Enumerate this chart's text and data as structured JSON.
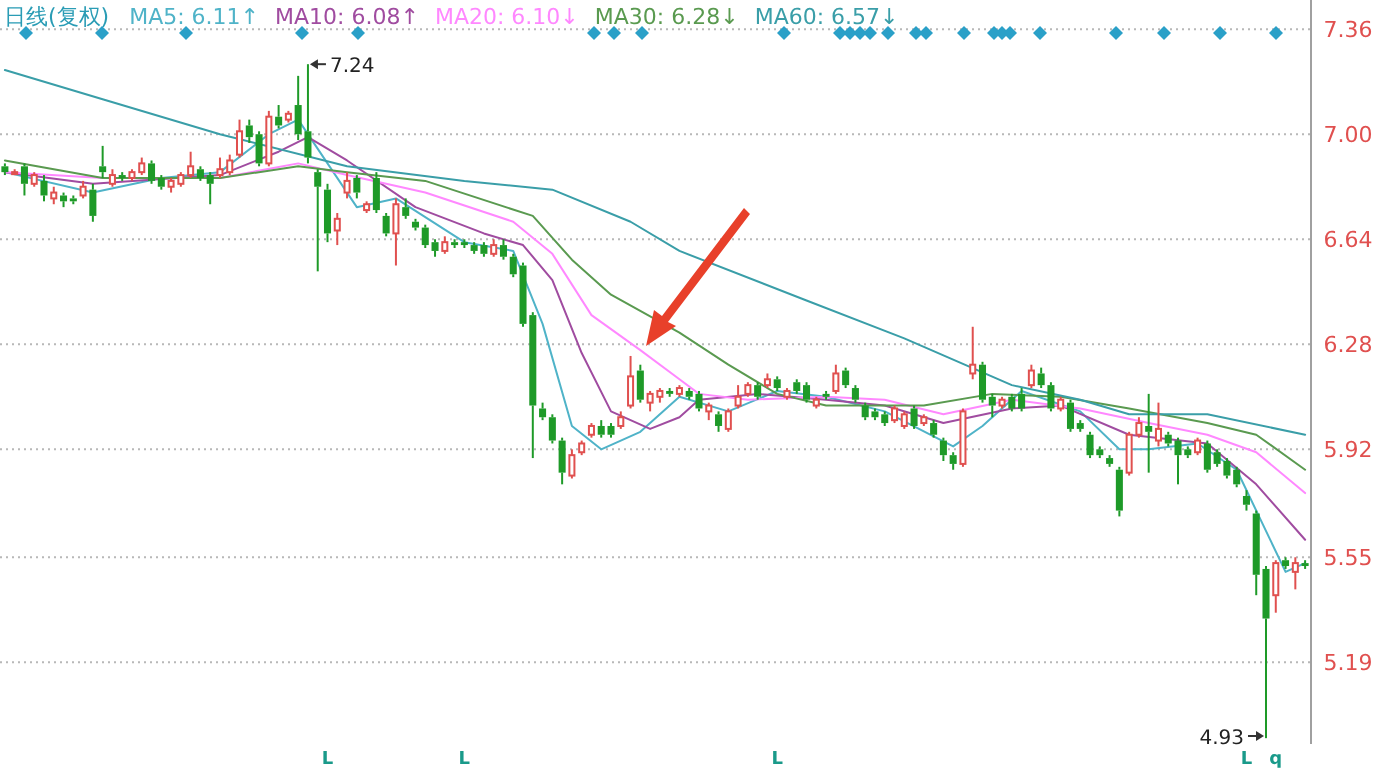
{
  "chart_data": {
    "type": "candlestick",
    "title": "日线(复权)",
    "legend": "top left",
    "grid": "y",
    "tick_labels": "y",
    "categories": [
      null,
      null,
      null,
      null,
      null,
      null,
      null,
      null,
      null,
      null,
      null,
      null,
      null,
      null,
      null,
      null,
      null,
      null,
      null,
      null,
      null,
      null,
      null,
      null,
      null,
      null,
      null,
      null,
      null,
      null,
      null,
      null,
      null,
      null,
      null,
      null,
      null,
      null,
      null,
      null,
      null,
      null,
      null,
      null,
      null,
      null,
      null,
      null,
      null,
      null,
      null,
      null,
      null,
      null,
      null,
      null,
      null,
      null,
      null,
      null,
      null,
      null,
      null,
      null,
      null,
      null,
      null,
      null,
      null,
      null,
      null,
      null,
      null,
      null,
      null,
      null,
      null,
      null,
      null,
      null,
      null,
      null,
      null,
      null,
      null,
      null,
      null,
      null,
      null,
      null,
      null,
      null,
      null,
      null,
      null,
      null,
      null,
      null,
      null,
      null,
      null,
      null,
      null,
      null,
      null,
      null,
      null,
      null,
      null,
      null,
      null,
      null,
      null,
      null,
      null,
      null,
      null,
      null,
      null,
      null,
      null,
      null,
      null,
      null,
      null,
      null,
      null,
      null,
      null,
      null,
      null,
      null,
      null,
      null
    ],
    "ohlc": [
      [
        6.89,
        6.9,
        6.86,
        6.87
      ],
      [
        6.87,
        6.88,
        6.86,
        6.87
      ],
      [
        6.89,
        6.9,
        6.79,
        6.83
      ],
      [
        6.83,
        6.87,
        6.82,
        6.86
      ],
      [
        6.84,
        6.86,
        6.77,
        6.79
      ],
      [
        6.78,
        6.82,
        6.76,
        6.8
      ],
      [
        6.79,
        6.8,
        6.75,
        6.77
      ],
      [
        6.78,
        6.79,
        6.76,
        6.77
      ],
      [
        6.79,
        6.84,
        6.78,
        6.82
      ],
      [
        6.81,
        6.83,
        6.7,
        6.72
      ],
      [
        6.89,
        6.96,
        6.85,
        6.87
      ],
      [
        6.83,
        6.88,
        6.82,
        6.86
      ],
      [
        6.86,
        6.87,
        6.84,
        6.85
      ],
      [
        6.85,
        6.88,
        6.84,
        6.87
      ],
      [
        6.87,
        6.92,
        6.86,
        6.9
      ],
      [
        6.9,
        6.91,
        6.83,
        6.84
      ],
      [
        6.85,
        6.86,
        6.81,
        6.82
      ],
      [
        6.82,
        6.85,
        6.8,
        6.84
      ],
      [
        6.83,
        6.87,
        6.82,
        6.86
      ],
      [
        6.86,
        6.94,
        6.85,
        6.89
      ],
      [
        6.88,
        6.89,
        6.84,
        6.85
      ],
      [
        6.86,
        6.87,
        6.76,
        6.83
      ],
      [
        6.86,
        6.92,
        6.85,
        6.88
      ],
      [
        6.87,
        6.93,
        6.86,
        6.91
      ],
      [
        6.93,
        7.05,
        6.92,
        7.01
      ],
      [
        7.03,
        7.05,
        6.97,
        6.99
      ],
      [
        7.0,
        7.01,
        6.89,
        6.9
      ],
      [
        6.9,
        7.08,
        6.89,
        7.06
      ],
      [
        7.06,
        7.1,
        7.02,
        7.03
      ],
      [
        7.05,
        7.08,
        7.04,
        7.07
      ],
      [
        7.1,
        7.2,
        6.98,
        7.0
      ],
      [
        7.01,
        7.24,
        6.9,
        6.92
      ],
      [
        6.87,
        6.88,
        6.53,
        6.82
      ],
      [
        6.81,
        6.83,
        6.63,
        6.66
      ],
      [
        6.67,
        6.73,
        6.62,
        6.71
      ],
      [
        6.8,
        6.87,
        6.78,
        6.84
      ],
      [
        6.85,
        6.86,
        6.78,
        6.8
      ],
      [
        6.74,
        6.77,
        6.73,
        6.76
      ],
      [
        6.85,
        6.87,
        6.73,
        6.74
      ],
      [
        6.72,
        6.73,
        6.65,
        6.66
      ],
      [
        6.66,
        6.78,
        6.55,
        6.76
      ],
      [
        6.75,
        6.78,
        6.71,
        6.72
      ],
      [
        6.7,
        6.71,
        6.67,
        6.68
      ],
      [
        6.68,
        6.69,
        6.61,
        6.62
      ],
      [
        6.63,
        6.64,
        6.58,
        6.6
      ],
      [
        6.6,
        6.65,
        6.59,
        6.63
      ],
      [
        6.63,
        6.64,
        6.61,
        6.62
      ],
      [
        6.63,
        6.64,
        6.61,
        6.62
      ],
      [
        6.62,
        6.63,
        6.59,
        6.6
      ],
      [
        6.62,
        6.63,
        6.58,
        6.59
      ],
      [
        6.59,
        6.64,
        6.58,
        6.62
      ],
      [
        6.62,
        6.64,
        6.57,
        6.58
      ],
      [
        6.58,
        6.59,
        6.51,
        6.52
      ],
      [
        6.55,
        6.56,
        6.34,
        6.35
      ],
      [
        6.38,
        6.39,
        5.89,
        6.07
      ],
      [
        6.06,
        6.08,
        6.02,
        6.03
      ],
      [
        6.03,
        6.04,
        5.94,
        5.95
      ],
      [
        5.95,
        5.96,
        5.8,
        5.84
      ],
      [
        5.83,
        5.92,
        5.82,
        5.9
      ],
      [
        5.91,
        5.95,
        5.9,
        5.94
      ],
      [
        5.97,
        6.01,
        5.96,
        6.0
      ],
      [
        6.0,
        6.02,
        5.96,
        5.97
      ],
      [
        6.0,
        6.01,
        5.96,
        5.97
      ],
      [
        6.0,
        6.05,
        5.99,
        6.03
      ],
      [
        6.07,
        6.24,
        6.06,
        6.17
      ],
      [
        6.19,
        6.21,
        6.08,
        6.09
      ],
      [
        6.08,
        6.12,
        6.05,
        6.11
      ],
      [
        6.1,
        6.13,
        6.08,
        6.12
      ],
      [
        6.12,
        6.13,
        6.1,
        6.11
      ],
      [
        6.11,
        6.14,
        6.1,
        6.13
      ],
      [
        6.12,
        6.13,
        6.09,
        6.1
      ],
      [
        6.11,
        6.12,
        6.05,
        6.06
      ],
      [
        6.05,
        6.08,
        6.02,
        6.07
      ],
      [
        6.04,
        6.05,
        5.98,
        6.0
      ],
      [
        5.99,
        6.06,
        5.98,
        6.05
      ],
      [
        6.07,
        6.14,
        6.06,
        6.1
      ],
      [
        6.11,
        6.15,
        6.1,
        6.14
      ],
      [
        6.14,
        6.15,
        6.09,
        6.1
      ],
      [
        6.14,
        6.18,
        6.13,
        6.16
      ],
      [
        6.16,
        6.17,
        6.12,
        6.13
      ],
      [
        6.1,
        6.13,
        6.09,
        6.12
      ],
      [
        6.15,
        6.16,
        6.11,
        6.12
      ],
      [
        6.14,
        6.15,
        6.08,
        6.09
      ],
      [
        6.07,
        6.1,
        6.06,
        6.09
      ],
      [
        6.11,
        6.12,
        6.09,
        6.1
      ],
      [
        6.12,
        6.21,
        6.11,
        6.18
      ],
      [
        6.19,
        6.2,
        6.13,
        6.14
      ],
      [
        6.13,
        6.14,
        6.08,
        6.09
      ],
      [
        6.07,
        6.08,
        6.02,
        6.03
      ],
      [
        6.05,
        6.06,
        6.02,
        6.03
      ],
      [
        6.04,
        6.05,
        6.0,
        6.01
      ],
      [
        6.02,
        6.07,
        6.01,
        6.06
      ],
      [
        6.0,
        6.05,
        5.99,
        6.04
      ],
      [
        6.06,
        6.07,
        5.99,
        6.0
      ],
      [
        6.01,
        6.04,
        6.0,
        6.03
      ],
      [
        6.01,
        6.02,
        5.96,
        5.97
      ],
      [
        5.95,
        5.96,
        5.88,
        5.9
      ],
      [
        5.9,
        5.91,
        5.85,
        5.87
      ],
      [
        5.87,
        6.06,
        5.86,
        6.05
      ],
      [
        6.18,
        6.34,
        6.16,
        6.21
      ],
      [
        6.21,
        6.22,
        6.08,
        6.09
      ],
      [
        6.1,
        6.11,
        6.03,
        6.07
      ],
      [
        6.07,
        6.1,
        6.06,
        6.09
      ],
      [
        6.1,
        6.11,
        6.05,
        6.06
      ],
      [
        6.11,
        6.13,
        6.05,
        6.06
      ],
      [
        6.14,
        6.21,
        6.13,
        6.19
      ],
      [
        6.18,
        6.2,
        6.13,
        6.14
      ],
      [
        6.14,
        6.15,
        6.05,
        6.06
      ],
      [
        6.06,
        6.1,
        6.05,
        6.09
      ],
      [
        6.08,
        6.09,
        5.98,
        5.99
      ],
      [
        6.01,
        6.02,
        5.98,
        5.99
      ],
      [
        5.97,
        5.98,
        5.89,
        5.9
      ],
      [
        5.92,
        5.93,
        5.89,
        5.9
      ],
      [
        5.89,
        5.9,
        5.86,
        5.87
      ],
      [
        5.85,
        5.86,
        5.69,
        5.71
      ],
      [
        5.84,
        5.98,
        5.83,
        5.97
      ],
      [
        5.97,
        6.03,
        5.96,
        6.01
      ],
      [
        6.0,
        6.11,
        5.84,
        5.98
      ],
      [
        5.95,
        6.08,
        5.93,
        5.99
      ],
      [
        5.97,
        5.98,
        5.93,
        5.94
      ],
      [
        5.95,
        5.96,
        5.8,
        5.9
      ],
      [
        5.92,
        5.93,
        5.89,
        5.9
      ],
      [
        5.91,
        5.96,
        5.9,
        5.95
      ],
      [
        5.94,
        5.95,
        5.84,
        5.85
      ],
      [
        5.91,
        5.92,
        5.86,
        5.87
      ],
      [
        5.88,
        5.89,
        5.82,
        5.83
      ],
      [
        5.85,
        5.86,
        5.79,
        5.8
      ],
      [
        5.76,
        5.78,
        5.71,
        5.73
      ],
      [
        5.7,
        5.71,
        5.42,
        5.49
      ],
      [
        5.51,
        5.52,
        4.93,
        5.34
      ],
      [
        5.42,
        5.54,
        5.36,
        5.53
      ],
      [
        5.54,
        5.55,
        5.51,
        5.52
      ],
      [
        5.5,
        5.55,
        5.44,
        5.53
      ],
      [
        5.53,
        5.54,
        5.51,
        5.52
      ]
    ],
    "series": [
      {
        "name": "MA5: 6.11↑",
        "type": "line",
        "color": "#4fb3c8",
        "values": [
          6.87,
          null,
          null,
          null,
          null,
          null,
          null,
          null,
          null,
          6.8,
          null,
          null,
          null,
          null,
          null,
          null,
          6.85,
          null,
          null,
          null,
          null,
          null,
          6.87,
          null,
          null,
          null,
          null,
          7.0,
          null,
          null,
          7.05,
          null,
          null,
          6.9,
          null,
          null,
          6.75,
          null,
          null,
          null,
          6.78,
          null,
          null,
          null,
          null,
          null,
          null,
          6.63,
          null,
          null,
          null,
          null,
          6.6,
          null,
          null,
          6.35,
          null,
          null,
          6.0,
          null,
          null,
          5.92,
          null,
          null,
          null,
          5.98,
          null,
          null,
          null,
          6.1,
          null,
          null,
          null,
          null,
          6.05,
          null,
          null,
          null,
          null,
          6.12,
          null,
          null,
          null,
          null,
          6.1,
          null,
          null,
          null,
          null,
          null,
          6.05,
          null,
          null,
          null,
          null,
          null,
          null,
          5.93,
          null,
          null,
          6.0,
          null,
          null,
          null,
          6.12,
          null,
          null,
          null,
          null,
          null,
          6.05,
          null,
          null,
          null,
          5.92,
          null,
          null,
          5.92,
          null,
          null,
          null,
          null,
          5.94,
          null,
          null,
          null,
          5.85,
          null,
          null,
          null,
          null,
          5.5,
          null,
          5.53
        ]
      },
      {
        "name": "MA10: 6.08↑",
        "type": "line",
        "color": "#a04ca0",
        "values": [
          6.87,
          null,
          null,
          null,
          null,
          null,
          null,
          null,
          null,
          6.83,
          null,
          null,
          null,
          null,
          null,
          null,
          null,
          null,
          null,
          null,
          null,
          null,
          6.86,
          null,
          null,
          null,
          null,
          null,
          6.94,
          null,
          null,
          6.99,
          null,
          null,
          null,
          6.91,
          null,
          null,
          null,
          null,
          null,
          null,
          6.75,
          null,
          null,
          null,
          null,
          null,
          null,
          6.66,
          null,
          null,
          null,
          6.62,
          null,
          null,
          6.5,
          null,
          null,
          6.25,
          null,
          null,
          6.05,
          null,
          null,
          null,
          5.99,
          null,
          null,
          6.03,
          null,
          6.09,
          null,
          null,
          null,
          null,
          null,
          6.11,
          null,
          null,
          null,
          null,
          null,
          null,
          6.09,
          null,
          null,
          null,
          null,
          null,
          6.07,
          null,
          null,
          null,
          null,
          null,
          6.01,
          null,
          null,
          null,
          null,
          null,
          null,
          6.06,
          null,
          null,
          null,
          null,
          6.07,
          null,
          null,
          null,
          null,
          null,
          null,
          5.97,
          null,
          null,
          null,
          null,
          null,
          null,
          null,
          5.94,
          null,
          null,
          null,
          null,
          5.8,
          null,
          null,
          null,
          null,
          5.61
        ]
      },
      {
        "name": "MA20: 6.10↓",
        "type": "line",
        "color": "#ff88ff",
        "values": [
          6.87,
          null,
          null,
          null,
          null,
          null,
          null,
          null,
          null,
          null,
          6.85,
          null,
          null,
          null,
          null,
          null,
          null,
          null,
          null,
          null,
          null,
          null,
          6.85,
          null,
          null,
          null,
          null,
          null,
          null,
          null,
          6.9,
          null,
          null,
          null,
          null,
          6.86,
          null,
          null,
          null,
          null,
          null,
          null,
          null,
          6.8,
          null,
          null,
          null,
          null,
          null,
          null,
          null,
          null,
          6.7,
          null,
          null,
          null,
          6.59,
          null,
          null,
          null,
          6.38,
          null,
          null,
          null,
          null,
          6.26,
          null,
          null,
          null,
          6.16,
          null,
          6.11,
          null,
          null,
          null,
          null,
          6.09,
          null,
          null,
          null,
          null,
          null,
          null,
          null,
          6.1,
          null,
          null,
          null,
          null,
          null,
          6.09,
          null,
          null,
          null,
          null,
          null,
          6.04,
          null,
          null,
          null,
          null,
          null,
          null,
          6.09,
          null,
          null,
          null,
          null,
          null,
          null,
          6.06,
          null,
          null,
          null,
          null,
          null,
          null,
          6.01,
          null,
          null,
          null,
          null,
          null,
          5.97,
          null,
          null,
          null,
          null,
          5.91,
          null,
          null,
          null,
          null,
          5.77
        ]
      },
      {
        "name": "MA30: 6.28↓",
        "type": "line",
        "color": "#5a9a50",
        "values": [
          6.91,
          null,
          null,
          null,
          null,
          null,
          null,
          null,
          null,
          null,
          6.85,
          null,
          null,
          null,
          null,
          null,
          null,
          null,
          null,
          null,
          null,
          null,
          6.85,
          null,
          null,
          null,
          null,
          null,
          null,
          null,
          6.89,
          null,
          null,
          null,
          null,
          6.87,
          null,
          null,
          null,
          null,
          null,
          null,
          null,
          6.84,
          null,
          null,
          null,
          null,
          null,
          null,
          null,
          null,
          null,
          null,
          6.72,
          null,
          null,
          null,
          6.57,
          null,
          null,
          null,
          6.45,
          null,
          null,
          null,
          null,
          null,
          null,
          6.32,
          null,
          null,
          null,
          null,
          6.21,
          null,
          null,
          null,
          null,
          6.11,
          null,
          null,
          null,
          null,
          6.07,
          null,
          null,
          null,
          null,
          null,
          null,
          null,
          null,
          null,
          6.07,
          null,
          null,
          null,
          null,
          null,
          null,
          6.11,
          null,
          null,
          null,
          null,
          null,
          null,
          6.1,
          null,
          null,
          null,
          null,
          null,
          null,
          6.06,
          null,
          null,
          null,
          null,
          null,
          null,
          null,
          6.01,
          null,
          null,
          null,
          null,
          5.97,
          null,
          null,
          null,
          null,
          5.85
        ]
      },
      {
        "name": "MA60: 6.57↓",
        "type": "line",
        "color": "#3a9ea8",
        "values": [
          7.22,
          null,
          null,
          null,
          null,
          null,
          null,
          null,
          null,
          null,
          7.12,
          null,
          null,
          null,
          null,
          null,
          null,
          null,
          null,
          null,
          null,
          null,
          7.0,
          null,
          null,
          null,
          null,
          null,
          null,
          null,
          null,
          null,
          null,
          null,
          null,
          6.89,
          null,
          null,
          null,
          null,
          null,
          null,
          null,
          null,
          null,
          null,
          null,
          6.84,
          null,
          null,
          null,
          null,
          null,
          null,
          null,
          null,
          6.81,
          null,
          null,
          null,
          null,
          null,
          null,
          null,
          6.7,
          null,
          null,
          null,
          null,
          6.6,
          null,
          null,
          null,
          null,
          null,
          null,
          null,
          null,
          null,
          null,
          null,
          null,
          6.43,
          null,
          null,
          null,
          null,
          null,
          null,
          null,
          null,
          null,
          6.3,
          null,
          null,
          null,
          null,
          null,
          null,
          null,
          null,
          null,
          null,
          6.14,
          null,
          null,
          null,
          null,
          null,
          null,
          6.09,
          null,
          null,
          null,
          null,
          6.04,
          null,
          null,
          null,
          null,
          null,
          null,
          null,
          6.04,
          null,
          null,
          null,
          null,
          null,
          null,
          null,
          null,
          null,
          5.97
        ]
      }
    ],
    "ylim": [
      4.91,
      7.46
    ],
    "yticks": [
      7.36,
      {
        "value": 7,
        "label": "7.00"
      },
      6.64,
      6.28,
      5.92,
      5.55,
      5.19
    ],
    "annotations": [
      "7.24",
      "4.93",
      "L",
      "L",
      "L",
      "L",
      "q"
    ]
  }
}
